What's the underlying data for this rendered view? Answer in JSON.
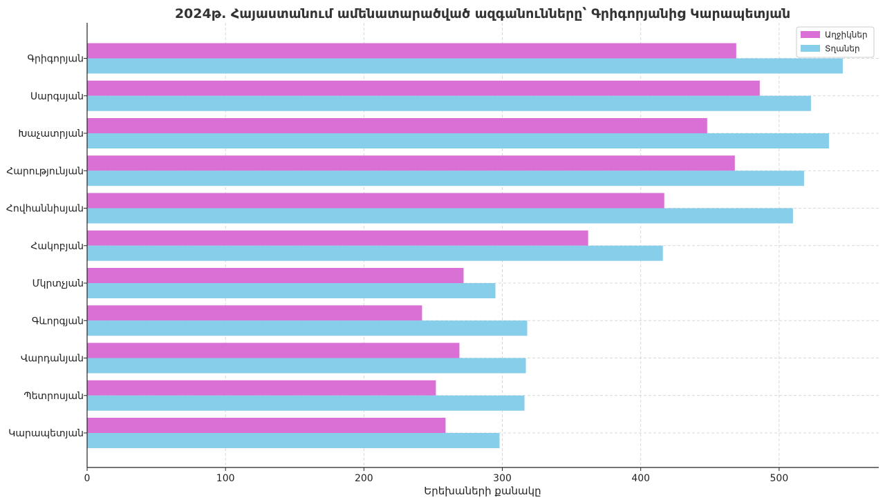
{
  "chart_data": {
    "type": "bar",
    "orientation": "horizontal",
    "title": "2024թ. Հայաստանում ամենատարածված ազգանունները՝ Գրիգորյանից Կարապետյան",
    "xlabel": "Երեխաների քանակը",
    "ylabel": "",
    "xlim": [
      0,
      572
    ],
    "xticks": [
      0,
      100,
      200,
      300,
      400,
      500
    ],
    "grid": true,
    "legend_position": "top-right",
    "categories": [
      "Գրիգորյան",
      "Սարգսյան",
      "Խաչատրյան",
      "Հարությունյան",
      "Հովհաննիսյան",
      "Հակոբյան",
      "Մկրտչյան",
      "Գևորգյան",
      "Վարդանյան",
      "Պետրոսյան",
      "Կարապետյան"
    ],
    "series": [
      {
        "name": "Աղջիկներ",
        "color": "#da70d6",
        "values": [
          469,
          486,
          448,
          468,
          417,
          362,
          272,
          242,
          269,
          252,
          259
        ]
      },
      {
        "name": "Տղաներ",
        "color": "#87ceeb",
        "values": [
          546,
          523,
          536,
          518,
          510,
          416,
          295,
          318,
          317,
          316,
          298
        ]
      }
    ]
  }
}
